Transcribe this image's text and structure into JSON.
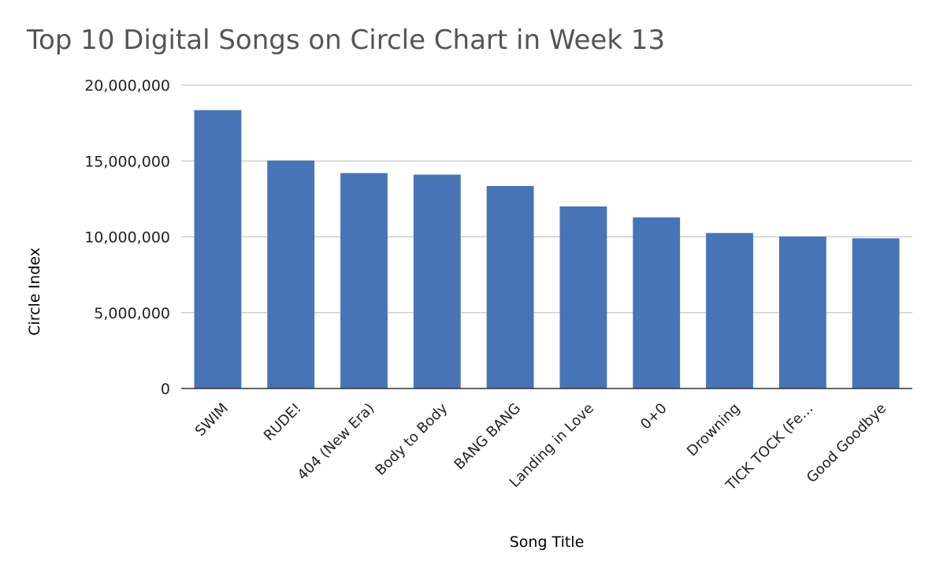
{
  "chart_data": {
    "type": "bar",
    "title": "Top 10 Digital Songs on Circle Chart in Week 13",
    "xlabel": "Song Title",
    "ylabel": "Circle Index",
    "categories": [
      "SWIM",
      "RUDE!",
      "404 (New Era)",
      "Body to Body",
      "BANG BANG",
      "Landing in Love",
      "0+0",
      "Drowning",
      "TICK TOCK (Fe…",
      "Good Goodbye"
    ],
    "series": [
      {
        "values": [
          18350000,
          15030000,
          14200000,
          14100000,
          13350000,
          12000000,
          11280000,
          10250000,
          10020000,
          9900000
        ]
      }
    ],
    "ylim": [
      0,
      20000000
    ],
    "yticks": [
      0,
      5000000,
      10000000,
      15000000,
      20000000
    ],
    "ytick_labels": [
      "0",
      "5,000,000",
      "10,000,000",
      "15,000,000",
      "20,000,000"
    ],
    "grid": true,
    "legend": "none",
    "bar_color": "#4774b6",
    "grid_color": "#c8c8c8",
    "axis_color": "#333333"
  }
}
